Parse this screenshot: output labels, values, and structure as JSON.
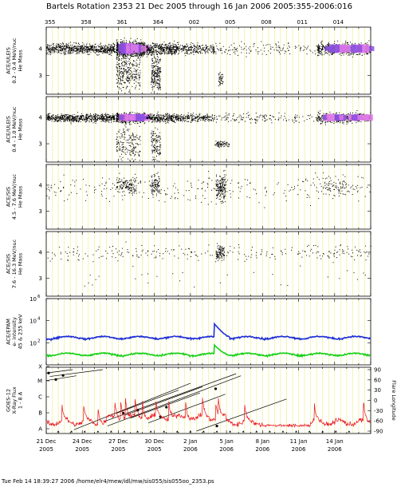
{
  "header": {
    "title": "Bartels Rotation 2353     21 Dec 2005 through 16 Jan 2006     2005:355-2006:016"
  },
  "footer": {
    "text": "Tue Feb 14 18:39:27 2006     /home/elr4/mew/idl/mw/sis055/sis055oo_2353.ps"
  },
  "colors": {
    "grid": "#f2f29a",
    "dots": "#000000",
    "dense_a": "#8a4fe0",
    "dense_b": "#e07ae8",
    "epam_high": "#1f2fd6",
    "epam_low": "#19d019",
    "xray": "#e8141b",
    "flare_lines": "#000000"
  },
  "chart_data": [
    {
      "type": "scatter",
      "panel": "ACE/ULEIS He mass 0.2-0.4 MeV/nuc",
      "ylabel": "ACE/ULEIS\n0.2 - 0.4 MeV/nuc\nHe Mass",
      "yticks": [
        "4",
        "3"
      ],
      "ylim": [
        2.3,
        4.8
      ],
      "x_doy_range": [
        355,
        382
      ],
      "clusters": [
        {
          "x": [
            355,
            360.7
          ],
          "y": 4.0,
          "spread": 0.12,
          "count": 700
        },
        {
          "x": [
            360.8,
            363.2
          ],
          "y": 4.0,
          "spread": 0.18,
          "count": 900,
          "dense": true
        },
        {
          "x": [
            363.3,
            366
          ],
          "y": 4.0,
          "spread": 0.14,
          "count": 400
        },
        {
          "x": [
            366,
            369
          ],
          "y": 4.0,
          "spread": 0.12,
          "count": 220
        },
        {
          "x": [
            369,
            377.5
          ],
          "y": 4.0,
          "spread": 0.15,
          "count": 140
        },
        {
          "x": [
            377.5,
            382
          ],
          "y": 4.0,
          "spread": 0.14,
          "count": 500,
          "dense": true
        },
        {
          "x": [
            360.8,
            362.8
          ],
          "y": 3.1,
          "spread": 0.45,
          "count": 300
        },
        {
          "x": [
            363.7,
            364.5
          ],
          "y": 3.1,
          "spread": 0.45,
          "count": 220
        },
        {
          "x": [
            369.3,
            369.7
          ],
          "y": 2.9,
          "spread": 0.15,
          "count": 40
        }
      ]
    },
    {
      "type": "scatter",
      "panel": "ACE/ULEIS He mass 0.4-1.0 MeV/nuc",
      "ylabel": "ACE/ULEIS\n0.4 - 1.0 MeV/nuc\nHe Mass",
      "yticks": [
        "4",
        "3"
      ],
      "ylim": [
        2.3,
        4.8
      ],
      "clusters": [
        {
          "x": [
            355,
            360.7
          ],
          "y": 4.0,
          "spread": 0.1,
          "count": 650
        },
        {
          "x": [
            360.8,
            363.2
          ],
          "y": 4.0,
          "spread": 0.12,
          "count": 600,
          "dense": true
        },
        {
          "x": [
            363.3,
            366
          ],
          "y": 4.0,
          "spread": 0.1,
          "count": 300
        },
        {
          "x": [
            366,
            369
          ],
          "y": 4.0,
          "spread": 0.1,
          "count": 200
        },
        {
          "x": [
            369,
            377.5
          ],
          "y": 4.0,
          "spread": 0.12,
          "count": 140
        },
        {
          "x": [
            377.5,
            382
          ],
          "y": 4.0,
          "spread": 0.12,
          "count": 480,
          "dense": true
        },
        {
          "x": [
            360.8,
            362.8
          ],
          "y": 3.0,
          "spread": 0.4,
          "count": 180
        },
        {
          "x": [
            363.7,
            364.5
          ],
          "y": 3.0,
          "spread": 0.4,
          "count": 120
        },
        {
          "x": [
            369.0,
            370.2
          ],
          "y": 3.0,
          "spread": 0.08,
          "count": 70
        }
      ]
    },
    {
      "type": "scatter",
      "panel": "ACE/SIS He mass 4.5-7.6 MeV/nuc",
      "ylabel": "ACE/SIS\n4.5 - 7.6 MeV/nuc\nHe Mass",
      "yticks": [
        "4",
        "3"
      ],
      "ylim": [
        2.3,
        4.8
      ],
      "clusters": [
        {
          "x": [
            355,
            382
          ],
          "y": 3.9,
          "spread": 0.35,
          "count": 300
        },
        {
          "x": [
            360.8,
            362.5
          ],
          "y": 4.0,
          "spread": 0.2,
          "count": 120
        },
        {
          "x": [
            363.7,
            364.4
          ],
          "y": 4.0,
          "spread": 0.25,
          "count": 100
        },
        {
          "x": [
            369.1,
            369.9
          ],
          "y": 3.9,
          "spread": 0.3,
          "count": 160
        },
        {
          "x": [
            378,
            380
          ],
          "y": 4.0,
          "spread": 0.25,
          "count": 60
        }
      ]
    },
    {
      "type": "scatter",
      "panel": "ACE/SIS He mass 7.6-16.3 MeV/nuc",
      "ylabel": "ACE/SIS\n7.6 - 16.3 MeV/nuc\nHe Mass",
      "yticks": [
        "4",
        "3"
      ],
      "ylim": [
        2.3,
        4.8
      ],
      "clusters": [
        {
          "x": [
            355,
            382
          ],
          "y": 4.0,
          "spread": 0.2,
          "count": 260
        },
        {
          "x": [
            369.1,
            369.8
          ],
          "y": 4.0,
          "spread": 0.18,
          "count": 90
        },
        {
          "x": [
            355,
            382
          ],
          "y": 3.0,
          "spread": 0.3,
          "count": 30
        }
      ]
    },
    {
      "type": "line",
      "panel": "ACE/EPAM e- intensity",
      "ylabel": "ACE/EPAM\ne- intensity\n45 & 235 keV",
      "yticks": [
        "10^6",
        "10^4",
        "10^2"
      ],
      "yscale": "log",
      "ylim": [
        1,
        1000000
      ],
      "series": [
        {
          "name": "45 keV",
          "level": 300,
          "bump": {
            "x": 369.1,
            "peak": 5000
          }
        },
        {
          "name": "235 keV",
          "level": 9,
          "bump": {
            "x": 369.1,
            "peak": 60
          }
        }
      ]
    },
    {
      "type": "line",
      "panel": "GOES-12 X-Ray Flux 1-8 A",
      "ylabel": "GOES-12\nX-Ray Flux\n1 - 8 A",
      "yticks": [
        "X",
        "M",
        "C",
        "B",
        "A"
      ],
      "y2label": "Flare Longitude",
      "y2ticks": [
        "90",
        "60",
        "30",
        "0",
        "-30",
        "-60",
        "-90"
      ],
      "y2lim": [
        -90,
        90
      ],
      "flare_tracks": [
        {
          "x0": 355.0,
          "lon0": 80,
          "x1": 357.2,
          "lon1": 90
        },
        {
          "x0": 355.3,
          "lon0": 70,
          "x1": 359.7,
          "lon1": 90
        },
        {
          "x0": 355.0,
          "lon0": 58,
          "x1": 357.5,
          "lon1": 72
        },
        {
          "x0": 359.8,
          "lon0": -62,
          "x1": 370.8,
          "lon1": 78
        },
        {
          "x0": 360.1,
          "lon0": -75,
          "x1": 371.2,
          "lon1": 72
        },
        {
          "x0": 360.8,
          "lon0": -38,
          "x1": 366.0,
          "lon1": 30
        },
        {
          "x0": 361.5,
          "lon0": -44,
          "x1": 368.0,
          "lon1": 40
        },
        {
          "x0": 362.0,
          "lon0": -52,
          "x1": 367.8,
          "lon1": 22
        },
        {
          "x0": 363.5,
          "lon0": -66,
          "x1": 369.9,
          "lon1": 18
        },
        {
          "x0": 367.5,
          "lon0": -90,
          "x1": 375.0,
          "lon1": 4
        },
        {
          "x0": 357.3,
          "lon0": -86,
          "x1": 367.0,
          "lon1": 50
        }
      ],
      "flare_markers": [
        {
          "x": 355.2,
          "lon": 80
        },
        {
          "x": 355.8,
          "lon": 61
        },
        {
          "x": 356.4,
          "lon": 73
        },
        {
          "x": 361.4,
          "lon": -37
        },
        {
          "x": 362.6,
          "lon": -29
        },
        {
          "x": 364.5,
          "lon": -48
        },
        {
          "x": 365.0,
          "lon": -20
        },
        {
          "x": 369.1,
          "lon": 34
        },
        {
          "x": 369.2,
          "lon": -75
        }
      ],
      "xray_events": [
        356.3,
        358.1,
        359.3,
        360.7,
        361.2,
        361.6,
        362.4,
        363.0,
        364.1,
        365.2,
        366.6,
        368.0,
        369.1,
        369.3,
        371.5,
        377.3,
        381.4
      ]
    }
  ],
  "x_axis": {
    "doy_start": 355,
    "doy_end": 382,
    "top_ticks": [
      {
        "doy": 355,
        "label": "355"
      },
      {
        "doy": 358,
        "label": "358"
      },
      {
        "doy": 361,
        "label": "361"
      },
      {
        "doy": 364,
        "label": "364"
      },
      {
        "doy": 367,
        "label": "002"
      },
      {
        "doy": 370,
        "label": "005"
      },
      {
        "doy": 373,
        "label": "008"
      },
      {
        "doy": 376,
        "label": "011"
      },
      {
        "doy": 379,
        "label": "014"
      }
    ],
    "bottom_ticks": [
      {
        "doy": 355,
        "label": "21 Dec",
        "year": "2005"
      },
      {
        "doy": 358,
        "label": "24 Dec",
        "year": "2005"
      },
      {
        "doy": 361,
        "label": "27 Dec",
        "year": "2005"
      },
      {
        "doy": 364,
        "label": "30 Dec",
        "year": "2005"
      },
      {
        "doy": 367,
        "label": "2 Jan",
        "year": "2006"
      },
      {
        "doy": 370,
        "label": "5 Jan",
        "year": "2006"
      },
      {
        "doy": 373,
        "label": "8 Jan",
        "year": "2006"
      },
      {
        "doy": 376,
        "label": "11 Jan",
        "year": "2006"
      },
      {
        "doy": 379,
        "label": "14 Jan",
        "year": "2006"
      }
    ]
  }
}
